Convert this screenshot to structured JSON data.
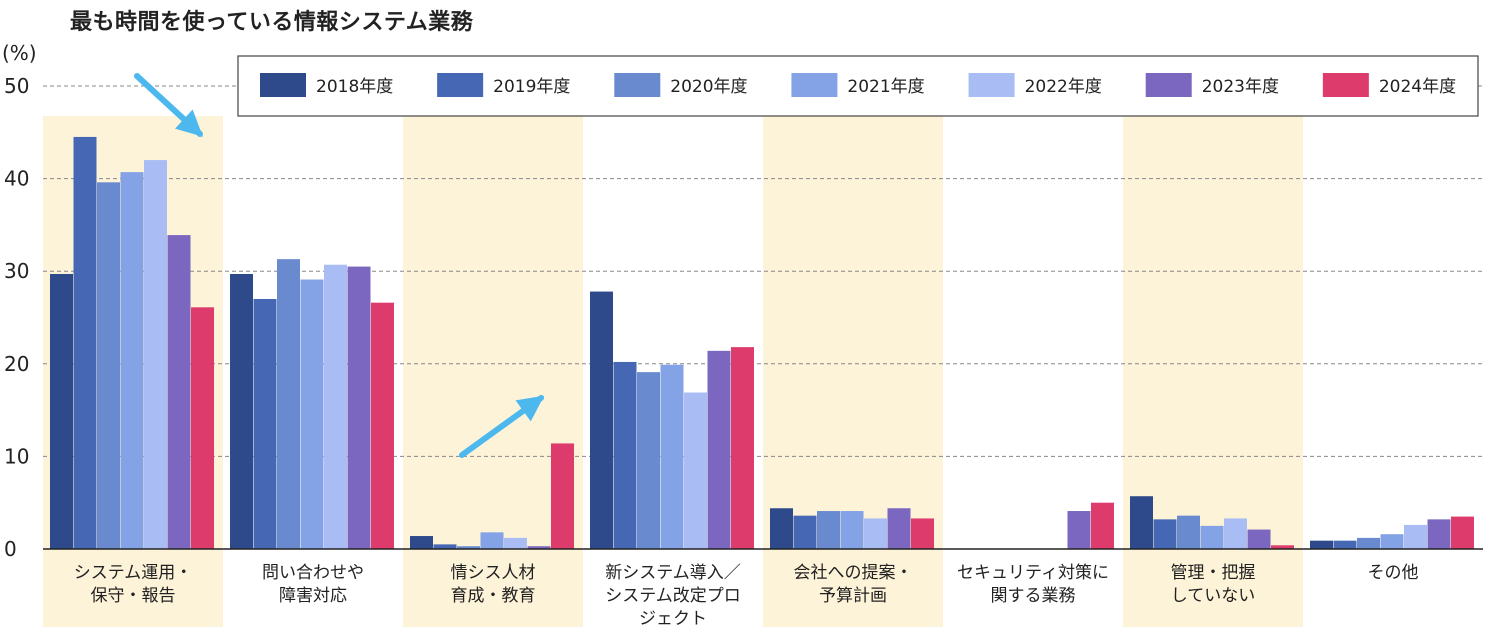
{
  "chart_data": {
    "type": "bar",
    "title": "最も時間を使っている情報システム業務",
    "ylabel": "(%)",
    "ylim": [
      0,
      50
    ],
    "yticks": [
      0,
      10,
      20,
      30,
      40,
      50
    ],
    "grid": true,
    "legend_position": "top-right",
    "categories": [
      [
        "システム運用・",
        "保守・報告"
      ],
      [
        "問い合わせや",
        "障害対応"
      ],
      [
        "情シス人材",
        "育成・教育"
      ],
      [
        "新システム導入／",
        "システム改定プロ",
        "ジェクト"
      ],
      [
        "会社への提案・",
        "予算計画"
      ],
      [
        "セキュリティ対策に",
        "関する業務"
      ],
      [
        "管理・把握",
        "していない"
      ],
      [
        "その他"
      ]
    ],
    "highlighted_categories": [
      0,
      2,
      4,
      6
    ],
    "highlight_color": "#fdf3d8",
    "series": [
      {
        "name": "2018年度",
        "color": "#2e4a8a",
        "values": [
          29.7,
          29.7,
          1.4,
          27.8,
          4.4,
          null,
          5.7,
          0.9
        ]
      },
      {
        "name": "2019年度",
        "color": "#4668b4",
        "values": [
          44.5,
          27.0,
          0.5,
          20.2,
          3.6,
          null,
          3.2,
          0.9
        ]
      },
      {
        "name": "2020年度",
        "color": "#6a8ad0",
        "values": [
          39.6,
          31.3,
          0.3,
          19.1,
          4.1,
          null,
          3.6,
          1.2
        ]
      },
      {
        "name": "2021年度",
        "color": "#84a2e6",
        "values": [
          40.7,
          29.1,
          1.8,
          19.9,
          4.1,
          null,
          2.5,
          1.6
        ]
      },
      {
        "name": "2022年度",
        "color": "#a9bcf3",
        "values": [
          42.0,
          30.7,
          1.2,
          16.9,
          3.3,
          null,
          3.3,
          2.6
        ]
      },
      {
        "name": "2023年度",
        "color": "#7b66c0",
        "values": [
          33.9,
          30.5,
          0.3,
          21.4,
          4.4,
          4.1,
          2.1,
          3.2
        ]
      },
      {
        "name": "2024年度",
        "color": "#dc3b6c",
        "values": [
          26.1,
          26.6,
          11.4,
          21.8,
          3.3,
          5.0,
          0.4,
          3.5
        ]
      }
    ],
    "annotations": [
      {
        "type": "arrow",
        "direction": "down-right",
        "category": 0,
        "color": "#4db8ee"
      },
      {
        "type": "arrow",
        "direction": "up-right",
        "category": 2,
        "color": "#4db8ee"
      }
    ]
  }
}
